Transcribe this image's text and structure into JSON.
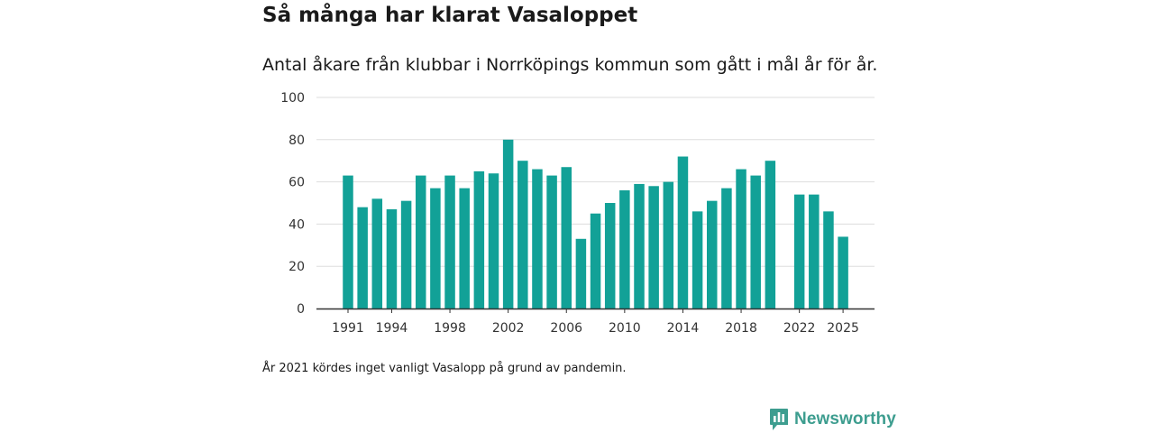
{
  "header": {
    "title": "Så många har klarat Vasaloppet",
    "subtitle": "Antal åkare från klubbar i Norrköpings kommun som gått i mål år för år."
  },
  "footer": {
    "note": "År 2021 kördes inget vanligt Vasalopp på grund av pandemin.",
    "brand": "Newsworthy"
  },
  "colors": {
    "bar": "#12a197",
    "brand": "#3d9d8f",
    "grid": "#dddddd",
    "axis": "#333333"
  },
  "chart_data": {
    "type": "bar",
    "title": "Så många har klarat Vasaloppet",
    "xlabel": "",
    "ylabel": "",
    "ylim": [
      0,
      100
    ],
    "yticks": [
      0,
      20,
      40,
      60,
      80,
      100
    ],
    "xticks": [
      1991,
      1994,
      1998,
      2002,
      2006,
      2010,
      2014,
      2018,
      2022,
      2025
    ],
    "grid": true,
    "categories": [
      1991,
      1992,
      1993,
      1994,
      1995,
      1996,
      1997,
      1998,
      1999,
      2000,
      2001,
      2002,
      2003,
      2004,
      2005,
      2006,
      2007,
      2008,
      2009,
      2010,
      2011,
      2012,
      2013,
      2014,
      2015,
      2016,
      2017,
      2018,
      2019,
      2020,
      2021,
      2022,
      2023,
      2024,
      2025
    ],
    "values": [
      63,
      48,
      52,
      47,
      51,
      63,
      57,
      63,
      57,
      65,
      64,
      80,
      70,
      66,
      63,
      67,
      33,
      45,
      50,
      56,
      59,
      58,
      60,
      72,
      46,
      51,
      57,
      66,
      63,
      70,
      null,
      54,
      54,
      46,
      34
    ]
  }
}
